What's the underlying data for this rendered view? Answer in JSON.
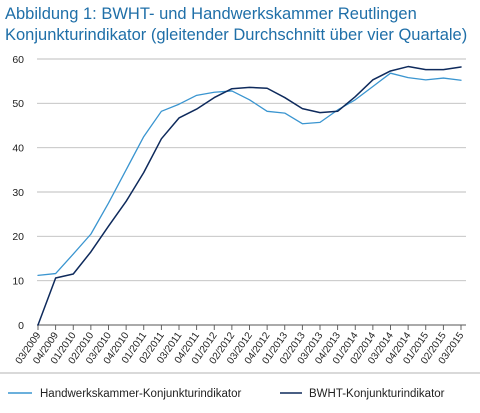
{
  "header": {
    "title_line1": "Abbildung 1: BWHT- und Handwerkskammer  Reutlingen",
    "title_line2": "Konjunkturindikator (gleitender Durchschnitt über vier Quartale)"
  },
  "chart_data": {
    "type": "line",
    "title": "Abbildung 1: BWHT- und Handwerkskammer  Reutlingen Konjunkturindikator (gleitender Durchschnitt über vier Quartale)",
    "xlabel": "",
    "ylabel": "",
    "ylim": [
      0,
      60
    ],
    "yticks": [
      0,
      10,
      20,
      30,
      40,
      50,
      60
    ],
    "grid": true,
    "legend_position": "bottom",
    "categories": [
      "03/2009",
      "04/2009",
      "01/2010",
      "02/2010",
      "03/2010",
      "04/2010",
      "01/2011",
      "02/2011",
      "03/2011",
      "04/2011",
      "01/2012",
      "02/2012",
      "03/2012",
      "04/2012",
      "01/2013",
      "02/2013",
      "03/2013",
      "04/2013",
      "01/2014",
      "02/2014",
      "03/2014",
      "04/2014",
      "01/2015",
      "02/2015",
      "03/2015"
    ],
    "x_tick_labels": [
      "03/2009",
      "04/2009",
      "01/2010",
      "02/2010",
      "03/2010",
      "04/2010",
      "01/2011",
      "02/2011",
      "03/2011",
      "04/2011",
      "01/2012",
      "02/2012",
      "03/2012",
      "04/2012",
      "01/2013",
      "02/2013",
      "03/2013",
      "04/2013",
      "01/2014",
      "02/2014",
      "03/2014",
      "04/2014",
      "01/2015",
      "02/2015",
      "03/2015"
    ],
    "series": [
      {
        "name": "Handwerkskammer-Konjunkturindikator",
        "color": "#3a95d0",
        "values": [
          11.2,
          11.6,
          16.0,
          20.5,
          27.5,
          35.0,
          42.5,
          48.2,
          49.8,
          51.8,
          52.5,
          52.8,
          50.8,
          48.2,
          47.8,
          45.4,
          45.7,
          48.5,
          50.8,
          53.8,
          56.8,
          55.8,
          55.3,
          55.7,
          55.2
        ]
      },
      {
        "name": "BWHT-Konjunkturindikator",
        "color": "#0e2a5c",
        "values": [
          0.0,
          10.6,
          11.5,
          16.5,
          22.3,
          27.9,
          34.4,
          42.0,
          46.7,
          48.7,
          51.3,
          53.3,
          53.6,
          53.4,
          51.3,
          48.8,
          47.9,
          48.2,
          51.5,
          55.3,
          57.3,
          58.3,
          57.6,
          57.6,
          58.2
        ]
      }
    ]
  }
}
